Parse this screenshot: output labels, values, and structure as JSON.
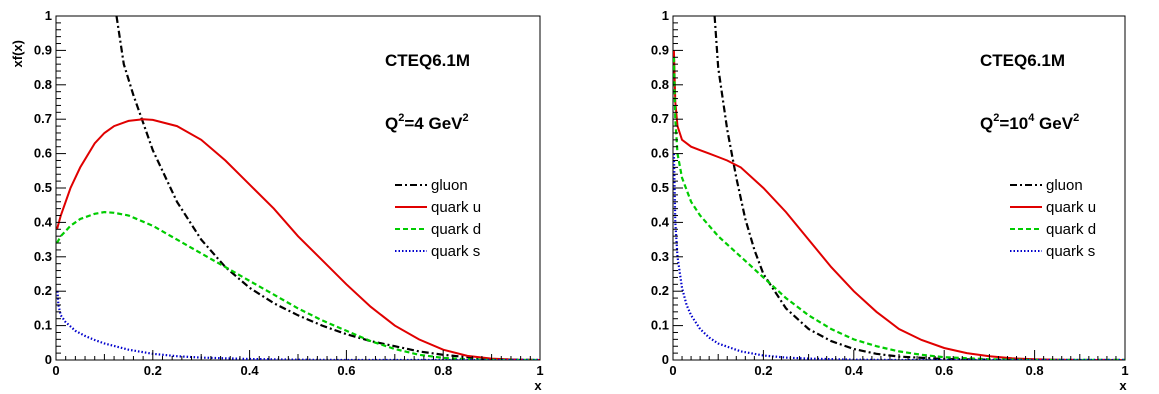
{
  "colors": {
    "gluon": "#000000",
    "quark_u": "#e00000",
    "quark_d": "#00cc00",
    "quark_s": "#0000cc"
  },
  "chart_data": [
    {
      "type": "line",
      "title": "",
      "xlabel": "x",
      "ylabel": "xf(x)",
      "xlim": [
        0,
        1
      ],
      "ylim": [
        0,
        1
      ],
      "xticks": [
        "0",
        "0.2",
        "0.4",
        "0.6",
        "0.8",
        "1"
      ],
      "yticks": [
        "0",
        "0.1",
        "0.2",
        "0.3",
        "0.4",
        "0.5",
        "0.6",
        "0.7",
        "0.8",
        "0.9",
        "1"
      ],
      "grid": false,
      "legend_position": "middle-right",
      "annotations": {
        "pdf_set": "CTEQ6.1M",
        "q2_base": "Q",
        "q2_exp": "2",
        "q2_mid": "=4 GeV",
        "q2_unit_exp": "2"
      },
      "series": [
        {
          "name": "gluon",
          "style": "dash-dot",
          "x": [
            0.125,
            0.14,
            0.16,
            0.18,
            0.2,
            0.25,
            0.3,
            0.35,
            0.4,
            0.45,
            0.5,
            0.55,
            0.6,
            0.65,
            0.7,
            0.75,
            0.8,
            0.85,
            0.9,
            0.95,
            1.0
          ],
          "y": [
            1.0,
            0.86,
            0.77,
            0.69,
            0.61,
            0.46,
            0.35,
            0.27,
            0.21,
            0.165,
            0.13,
            0.1,
            0.075,
            0.055,
            0.04,
            0.025,
            0.015,
            0.008,
            0.003,
            0.001,
            0.0
          ]
        },
        {
          "name": "quark u",
          "style": "solid",
          "x": [
            0.002,
            0.01,
            0.03,
            0.05,
            0.08,
            0.1,
            0.12,
            0.15,
            0.18,
            0.2,
            0.25,
            0.3,
            0.35,
            0.4,
            0.45,
            0.5,
            0.55,
            0.6,
            0.65,
            0.7,
            0.75,
            0.8,
            0.85,
            0.9,
            0.95,
            1.0
          ],
          "y": [
            0.38,
            0.42,
            0.5,
            0.56,
            0.63,
            0.66,
            0.68,
            0.695,
            0.7,
            0.698,
            0.68,
            0.64,
            0.58,
            0.51,
            0.44,
            0.36,
            0.29,
            0.22,
            0.155,
            0.1,
            0.06,
            0.03,
            0.012,
            0.004,
            0.001,
            0.0
          ]
        },
        {
          "name": "quark d",
          "style": "dashed",
          "x": [
            0.002,
            0.01,
            0.03,
            0.05,
            0.08,
            0.1,
            0.12,
            0.15,
            0.2,
            0.25,
            0.3,
            0.35,
            0.4,
            0.45,
            0.5,
            0.55,
            0.6,
            0.65,
            0.7,
            0.75,
            0.8,
            0.85,
            0.9,
            1.0
          ],
          "y": [
            0.34,
            0.36,
            0.39,
            0.41,
            0.425,
            0.43,
            0.428,
            0.42,
            0.39,
            0.35,
            0.31,
            0.27,
            0.23,
            0.19,
            0.15,
            0.115,
            0.085,
            0.055,
            0.032,
            0.015,
            0.006,
            0.002,
            0.0,
            0.0
          ]
        },
        {
          "name": "quark s",
          "style": "dotted",
          "x": [
            0.003,
            0.005,
            0.01,
            0.02,
            0.04,
            0.06,
            0.08,
            0.1,
            0.15,
            0.2,
            0.25,
            0.3,
            0.4,
            0.5,
            0.6,
            0.7,
            0.8,
            1.0
          ],
          "y": [
            0.2,
            0.16,
            0.13,
            0.11,
            0.085,
            0.07,
            0.058,
            0.048,
            0.03,
            0.018,
            0.011,
            0.007,
            0.003,
            0.001,
            0.0,
            0.0,
            0.0,
            0.0
          ]
        }
      ]
    },
    {
      "type": "line",
      "title": "",
      "xlabel": "x",
      "ylabel": "",
      "xlim": [
        0,
        1
      ],
      "ylim": [
        0,
        1
      ],
      "xticks": [
        "0",
        "0.2",
        "0.4",
        "0.6",
        "0.8",
        "1"
      ],
      "yticks": [
        "0",
        "0.1",
        "0.2",
        "0.3",
        "0.4",
        "0.5",
        "0.6",
        "0.7",
        "0.8",
        "0.9",
        "1"
      ],
      "grid": false,
      "legend_position": "middle-right",
      "annotations": {
        "pdf_set": "CTEQ6.1M",
        "q2_base": "Q",
        "q2_exp": "2",
        "q2_mid": "=10",
        "q2_mid_exp": "4",
        "q2_unit": " GeV",
        "q2_unit_exp": "2"
      },
      "series": [
        {
          "name": "gluon",
          "style": "dash-dot",
          "x": [
            0.092,
            0.1,
            0.12,
            0.14,
            0.16,
            0.18,
            0.2,
            0.25,
            0.3,
            0.35,
            0.4,
            0.45,
            0.5,
            0.6,
            0.7,
            0.8,
            0.9,
            1.0
          ],
          "y": [
            1.0,
            0.85,
            0.67,
            0.53,
            0.41,
            0.32,
            0.25,
            0.15,
            0.09,
            0.055,
            0.032,
            0.018,
            0.01,
            0.003,
            0.001,
            0.0,
            0.0,
            0.0
          ]
        },
        {
          "name": "quark u",
          "style": "solid",
          "x": [
            0.002,
            0.005,
            0.01,
            0.02,
            0.04,
            0.06,
            0.08,
            0.1,
            0.12,
            0.15,
            0.2,
            0.25,
            0.3,
            0.35,
            0.4,
            0.45,
            0.5,
            0.55,
            0.6,
            0.65,
            0.7,
            0.75,
            0.8,
            0.85,
            0.9,
            1.0
          ],
          "y": [
            0.9,
            0.75,
            0.68,
            0.64,
            0.62,
            0.61,
            0.6,
            0.59,
            0.58,
            0.56,
            0.5,
            0.43,
            0.35,
            0.27,
            0.2,
            0.14,
            0.09,
            0.058,
            0.035,
            0.02,
            0.011,
            0.005,
            0.002,
            0.001,
            0.0,
            0.0
          ]
        },
        {
          "name": "quark d",
          "style": "dashed",
          "x": [
            0.002,
            0.005,
            0.01,
            0.02,
            0.04,
            0.06,
            0.08,
            0.1,
            0.15,
            0.2,
            0.25,
            0.3,
            0.35,
            0.4,
            0.45,
            0.5,
            0.55,
            0.6,
            0.7,
            0.8,
            1.0
          ],
          "y": [
            0.88,
            0.7,
            0.6,
            0.53,
            0.46,
            0.42,
            0.39,
            0.36,
            0.3,
            0.24,
            0.18,
            0.13,
            0.09,
            0.06,
            0.04,
            0.025,
            0.015,
            0.008,
            0.002,
            0.0,
            0.0
          ]
        },
        {
          "name": "quark s",
          "style": "dotted",
          "x": [
            0.002,
            0.005,
            0.01,
            0.02,
            0.03,
            0.04,
            0.06,
            0.08,
            0.1,
            0.15,
            0.2,
            0.25,
            0.3,
            0.4,
            0.5,
            0.6,
            1.0
          ],
          "y": [
            0.6,
            0.4,
            0.3,
            0.21,
            0.16,
            0.13,
            0.09,
            0.065,
            0.048,
            0.025,
            0.013,
            0.007,
            0.004,
            0.001,
            0.0,
            0.0,
            0.0
          ]
        }
      ]
    }
  ]
}
